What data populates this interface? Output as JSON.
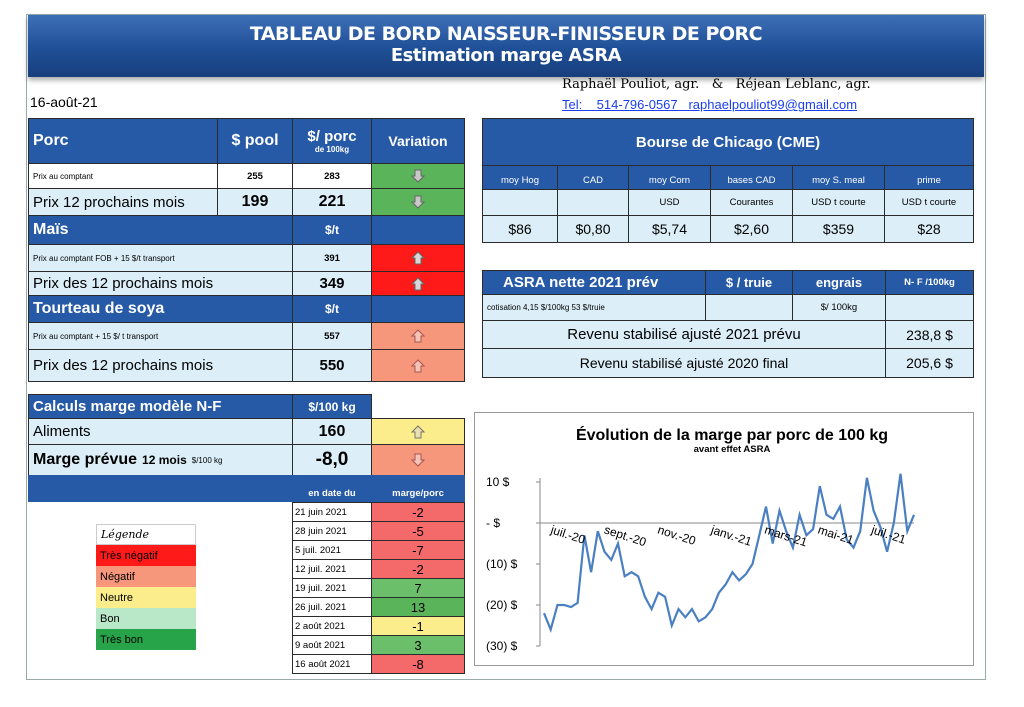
{
  "header": {
    "title": "TABLEAU DE BORD NAISSEUR-FINISSEUR DE PORC",
    "subtitle": "Estimation marge ASRA"
  },
  "date": "16-août-21",
  "authors": {
    "names": "Raphaël Pouliot, agr.   &   Réjean Leblanc, agr.",
    "contact": "Tel:    514-796-0567   raphaelpouliot99@gmail.com"
  },
  "porc": {
    "title": "Porc",
    "col_pool": "$ pool",
    "col_porc": "$/ porc",
    "col_porc_sub": "de 100kg",
    "col_var": "Variation",
    "row1": {
      "label": "Prix au comptant",
      "pool": "255",
      "porc": "283"
    },
    "row2": {
      "label": "Prix 12 prochains mois",
      "pool": "199",
      "porc": "221"
    }
  },
  "mais": {
    "title": "Maïs",
    "unit": "$/t",
    "row1": {
      "label": "Prix au comptant  FOB + 15 $/t transport",
      "value": "391"
    },
    "row2": {
      "label": "Prix des 12 prochains mois",
      "value": "349"
    }
  },
  "soya": {
    "title": "Tourteau de soya",
    "unit": "$/t",
    "row1": {
      "label": "Prix au comptant  + 15 $/ t  transport",
      "value": "557"
    },
    "row2": {
      "label": "Prix des 12 prochains mois",
      "value": "550"
    }
  },
  "cme": {
    "title": "Bourse de Chicago (CME)",
    "cols": [
      "moy Hog",
      "CAD",
      "moy Corn",
      "bases CAD",
      "moy S. meal",
      "prime"
    ],
    "subs": [
      "",
      "",
      "USD",
      "Courantes",
      "USD t courte",
      "USD t courte"
    ],
    "values": [
      "$86",
      "$0,80",
      "$5,74",
      "$2,60",
      "$359",
      "$28"
    ]
  },
  "asra": {
    "title": "ASRA nette 2021 prév",
    "col1": "$ / truie",
    "col2": "engrais",
    "col3": "N- F /100kg",
    "cotisation": "cotisation 4,15 $/100kg  53 $/truie",
    "engrais_unit": "$/ 100kg",
    "row1_label": "Revenu stabilisé ajusté 2021 prévu",
    "row1_value": "238,8 $",
    "row2_label": "Revenu stabilisé ajusté 2020 final",
    "row2_value": "205,6 $"
  },
  "marge": {
    "title": "Calculs marge  modèle N-F",
    "unit": "$/100 kg",
    "aliments_label": "Aliments",
    "aliments_value": "160",
    "prevue_label": "Marge prévue",
    "prevue_sub": "12 mois",
    "prevue_unit": "$/100 kg",
    "prevue_value": "-8,0",
    "col_date": "en date du",
    "col_marge": "marge/porc",
    "history": [
      {
        "date": "21 juin 2021",
        "value": "-2"
      },
      {
        "date": "28 juin 2021",
        "value": "-5"
      },
      {
        "date": "5 juil. 2021",
        "value": "-7"
      },
      {
        "date": "12 juil. 2021",
        "value": "-2"
      },
      {
        "date": "19 juil. 2021",
        "value": "7"
      },
      {
        "date": "26 juil. 2021",
        "value": "13"
      },
      {
        "date": "2 août 2021",
        "value": "-1"
      },
      {
        "date": "9 août 2021",
        "value": "3"
      },
      {
        "date": "16 août 2021",
        "value": "-8"
      }
    ]
  },
  "legend": {
    "title": "Légende",
    "items": [
      "Très négatif",
      "Négatif",
      "Neutre",
      "Bon",
      "Très bon"
    ],
    "colors": [
      "#ff1a1a",
      "#f6967a",
      "#fbed8c",
      "#b9e8c8",
      "#27a34a"
    ]
  },
  "colors": {
    "header_blue": "#2659a6",
    "light_blue": "#dceef8",
    "line": "#4a7fc1"
  },
  "chart_data": {
    "type": "line",
    "title": "Évolution de la marge par porc de 100 kg",
    "subtitle": "avant effet ASRA",
    "y_ticks": [
      "10 $",
      "-  $",
      "(10) $",
      "(20) $",
      "(30) $"
    ],
    "ylim": [
      -30,
      10
    ],
    "x_ticks": [
      "juil.-20",
      "sept.-20",
      "nov.-20",
      "janv.-21",
      "mars-21",
      "mai-21",
      "juil.-21"
    ],
    "series": [
      {
        "values": [
          -22,
          -26,
          -20,
          -20,
          -20.5,
          -19.5,
          -3,
          -12,
          -2,
          -7,
          -9,
          -5,
          -13,
          -12,
          -13,
          -18,
          -21,
          -17,
          -18,
          -25,
          -21,
          -23,
          -21,
          -24,
          -23,
          -21,
          -17,
          -15,
          -12,
          -14,
          -12.5,
          -10,
          -3,
          4,
          -5,
          3,
          -2,
          -6,
          2,
          -3,
          -1.5,
          9,
          2,
          1,
          4,
          -4,
          -6,
          -2,
          11,
          3,
          -1,
          -7,
          0,
          12,
          -2,
          2
        ]
      }
    ]
  }
}
